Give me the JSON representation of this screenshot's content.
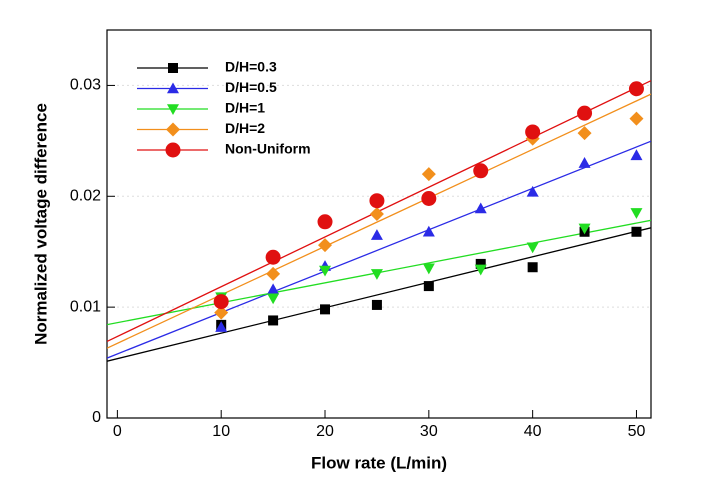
{
  "chart_data": {
    "type": "scatter",
    "xlabel": "Flow rate (L/min)",
    "ylabel": "Normalized voltage difference",
    "xlim": [
      -1,
      51.4
    ],
    "ylim": [
      0,
      0.035
    ],
    "xticks": [
      0,
      10,
      20,
      30,
      40,
      50
    ],
    "yticks": [
      0,
      0.01,
      0.02,
      0.03
    ],
    "grid": true,
    "trendline": true,
    "legend": "upper left",
    "x": [
      10,
      15,
      20,
      25,
      30,
      35,
      40,
      45,
      50
    ],
    "series": [
      {
        "name": "D/H=0.3",
        "color": "#000000",
        "marker": "square",
        "values": [
          0.0084,
          0.0088,
          0.0098,
          0.0102,
          0.0119,
          0.0139,
          0.0136,
          0.0168,
          0.0168
        ]
      },
      {
        "name": "D/H=0.5",
        "color": "#2b2be6",
        "marker": "triangle-up",
        "values": [
          0.0082,
          0.0116,
          0.0137,
          0.0165,
          0.0168,
          0.0189,
          0.0204,
          0.023,
          0.0237
        ]
      },
      {
        "name": "D/H=1",
        "color": "#22dd22",
        "marker": "triangle-down",
        "values": [
          0.0109,
          0.0108,
          0.0133,
          0.013,
          0.0135,
          0.0134,
          0.0154,
          0.0171,
          0.0185
        ]
      },
      {
        "name": "D/H=2",
        "color": "#f28f1c",
        "marker": "diamond",
        "values": [
          0.0095,
          0.013,
          0.0156,
          0.0184,
          0.022,
          0.0223,
          0.0252,
          0.0257,
          0.027
        ]
      },
      {
        "name": "Non-Uniform",
        "color": "#e01010",
        "marker": "circle",
        "values": [
          0.0105,
          0.0145,
          0.0177,
          0.0196,
          0.0198,
          0.0223,
          0.0258,
          0.0275,
          0.0297
        ]
      }
    ]
  }
}
